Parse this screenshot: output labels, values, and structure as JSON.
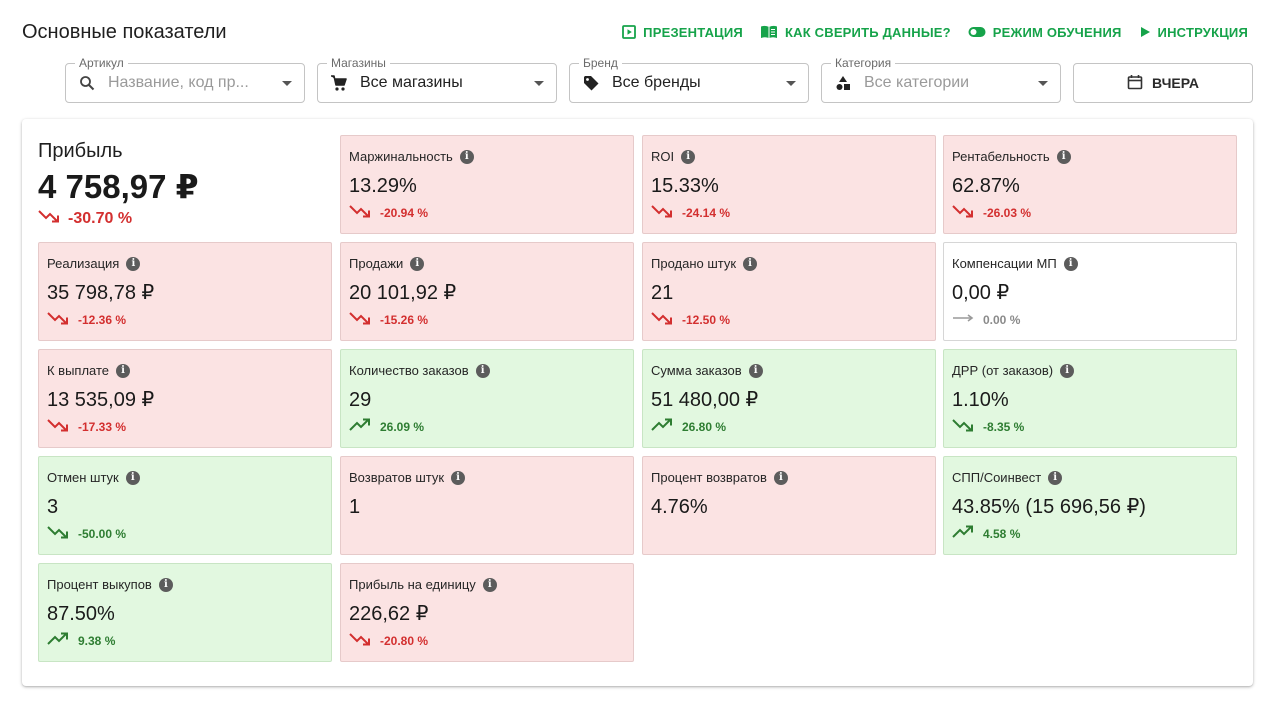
{
  "header": {
    "title": "Основные показатели",
    "actions": [
      {
        "label": "ПРЕЗЕНТАЦИЯ",
        "icon": "presentation-icon"
      },
      {
        "label": "КАК СВЕРИТЬ ДАННЫЕ?",
        "icon": "book-icon"
      },
      {
        "label": "РЕЖИМ ОБУЧЕНИЯ",
        "icon": "toggle-icon"
      },
      {
        "label": "ИНСТРУКЦИЯ",
        "icon": "play-icon"
      }
    ]
  },
  "filters": {
    "article": {
      "label": "Артикул",
      "placeholder": "Название, код пр..."
    },
    "shops": {
      "label": "Магазины",
      "value": "Все магазины"
    },
    "brand": {
      "label": "Бренд",
      "value": "Все бренды"
    },
    "category": {
      "label": "Категория",
      "placeholder": "Все категории"
    },
    "date_button": "ВЧЕРА"
  },
  "hero": {
    "label": "Прибыль",
    "value": "4 758,97 ₽",
    "delta": "-30.70 %",
    "trend": "down"
  },
  "colors": {
    "accent_green": "#16a34a",
    "negative": "#d32f2f",
    "positive": "#2e7d32",
    "card_red": "#fbe3e3",
    "card_green": "#e2f8e0"
  },
  "cards": [
    {
      "label": "Маржинальность",
      "value": "13.29%",
      "delta": "-20.94 %",
      "trend": "down",
      "tone": "red"
    },
    {
      "label": "ROI",
      "value": "15.33%",
      "delta": "-24.14 %",
      "trend": "down",
      "tone": "red"
    },
    {
      "label": "Рентабельность",
      "value": "62.87%",
      "delta": "-26.03 %",
      "trend": "down",
      "tone": "red"
    },
    {
      "label": "Реализация",
      "value": "35 798,78 ₽",
      "delta": "-12.36 %",
      "trend": "down",
      "tone": "red"
    },
    {
      "label": "Продажи",
      "value": "20 101,92 ₽",
      "delta": "-15.26 %",
      "trend": "down",
      "tone": "red"
    },
    {
      "label": "Продано штук",
      "value": "21",
      "delta": "-12.50 %",
      "trend": "down",
      "tone": "red"
    },
    {
      "label": "Компенсации МП",
      "value": "0,00 ₽",
      "delta": "0.00 %",
      "trend": "flat",
      "tone": "white"
    },
    {
      "label": "К выплате",
      "value": "13 535,09 ₽",
      "delta": "-17.33 %",
      "trend": "down",
      "tone": "red"
    },
    {
      "label": "Количество заказов",
      "value": "29",
      "delta": "26.09 %",
      "trend": "up",
      "tone": "green"
    },
    {
      "label": "Сумма заказов",
      "value": "51 480,00 ₽",
      "delta": "26.80 %",
      "trend": "up",
      "tone": "green"
    },
    {
      "label": "ДРР (от заказов)",
      "value": "1.10%",
      "delta": "-8.35 %",
      "trend": "down-good",
      "tone": "green"
    },
    {
      "label": "Отмен штук",
      "value": "3",
      "delta": "-50.00 %",
      "trend": "down-good",
      "tone": "green"
    },
    {
      "label": "Возвратов штук",
      "value": "1",
      "delta": "",
      "trend": "none",
      "tone": "red"
    },
    {
      "label": "Процент возвратов",
      "value": "4.76%",
      "delta": "",
      "trend": "none",
      "tone": "red"
    },
    {
      "label": "СПП/Соинвест",
      "value": "43.85% (15 696,56 ₽)",
      "delta": "4.58 %",
      "trend": "up",
      "tone": "green"
    },
    {
      "label": "Процент выкупов",
      "value": "87.50%",
      "delta": "9.38 %",
      "trend": "up",
      "tone": "green"
    },
    {
      "label": "Прибыль на единицу",
      "value": "226,62 ₽",
      "delta": "-20.80 %",
      "trend": "down",
      "tone": "red"
    }
  ]
}
